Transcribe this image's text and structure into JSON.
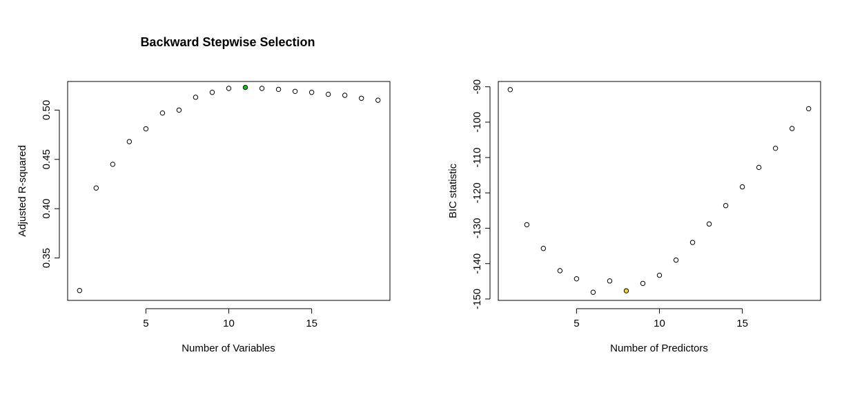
{
  "chart_data": [
    {
      "type": "scatter",
      "title": "Backward Stepwise Selection",
      "xlabel": "Number of Variables",
      "ylabel": "Adjusted R-squared",
      "xlim": [
        0.28,
        19.72
      ],
      "ylim": [
        0.307,
        0.529
      ],
      "xticks": [
        "5",
        "10",
        "15"
      ],
      "yticks": [
        "0.35",
        "0.40",
        "0.45",
        "0.50"
      ],
      "series": [
        {
          "x": [
            1,
            2,
            3,
            4,
            5,
            6,
            7,
            8,
            9,
            10,
            11,
            12,
            13,
            14,
            15,
            16,
            17,
            18,
            19
          ],
          "y": [
            0.317,
            0.421,
            0.445,
            0.468,
            0.481,
            0.497,
            0.5,
            0.513,
            0.518,
            0.522,
            0.523,
            0.522,
            0.521,
            0.519,
            0.518,
            0.516,
            0.515,
            0.512,
            0.51
          ]
        }
      ],
      "highlight": {
        "x": 11,
        "y": 0.523,
        "color": "#00cc00"
      },
      "point_color": "#000000",
      "grid": false
    },
    {
      "type": "scatter",
      "title": "",
      "xlabel": "Number of Predictors",
      "ylabel": "BIC statistic",
      "xlim": [
        0.28,
        19.72
      ],
      "ylim": [
        -150.4,
        -88.5
      ],
      "xticks": [
        "5",
        "10",
        "15"
      ],
      "yticks": [
        "-150",
        "-140",
        "-130",
        "-120",
        "-110",
        "-100",
        "-90"
      ],
      "series": [
        {
          "x": [
            1,
            2,
            3,
            4,
            5,
            6,
            7,
            8,
            9,
            10,
            11,
            12,
            13,
            14,
            15,
            16,
            17,
            18,
            19
          ],
          "y": [
            -90.8,
            -129.0,
            -135.7,
            -142.0,
            -144.3,
            -148.1,
            -144.9,
            -147.7,
            -145.6,
            -143.3,
            -139.0,
            -134.0,
            -128.8,
            -123.6,
            -118.3,
            -112.8,
            -107.4,
            -101.8,
            -96.2
          ]
        }
      ],
      "highlight": {
        "x": 8,
        "y": -147.7,
        "color": "#ffd700"
      },
      "point_color": "#000000",
      "grid": false
    }
  ]
}
